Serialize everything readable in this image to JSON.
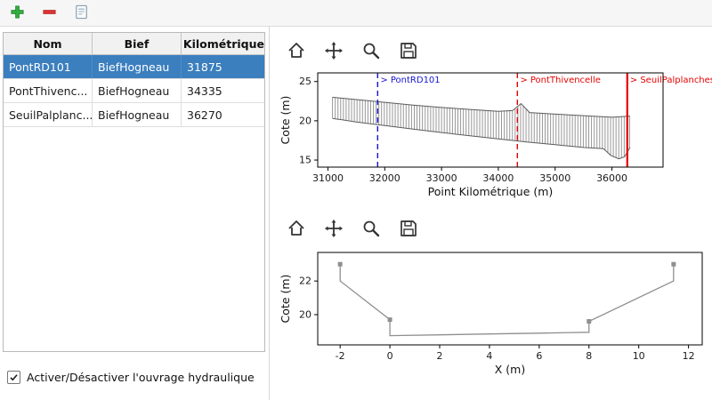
{
  "toolbar": {
    "buttons": [
      {
        "id": "add",
        "icon": "plus-icon"
      },
      {
        "id": "remove",
        "icon": "minus-icon"
      },
      {
        "id": "edit",
        "icon": "document-edit-icon"
      }
    ]
  },
  "table": {
    "columns": [
      "Nom",
      "Bief",
      "Point Kilométrique"
    ],
    "rows": [
      {
        "nom": "PontRD101",
        "bief": "BiefHogneau",
        "pk": "31875",
        "selected": true
      },
      {
        "nom": "PontThivenc...",
        "bief": "BiefHogneau",
        "pk": "34335",
        "selected": false
      },
      {
        "nom": "SeuilPalplanc...",
        "bief": "BiefHogneau",
        "pk": "36270",
        "selected": false
      }
    ]
  },
  "checkbox": {
    "label": "Activer/Désactiver l'ouvrage hydraulique",
    "checked": true
  },
  "plot_toolbar_icons": [
    "home-icon",
    "pan-icon",
    "zoom-icon",
    "save-icon"
  ],
  "colors": {
    "selection": "#3c7fbe",
    "selection_text": "#ffffff",
    "annotation_blue": "#1515cf",
    "annotation_red": "#e60000",
    "profile_gray": "#979797",
    "envelope_gray": "#5c5c5c"
  },
  "chart_data": [
    {
      "type": "line",
      "title": "",
      "xlabel": "Point Kilométrique (m)",
      "ylabel": "Cote (m)",
      "xlim": [
        30820,
        36900
      ],
      "ylim": [
        14.1,
        26.1
      ],
      "xticks": [
        31000,
        32000,
        33000,
        34000,
        35000,
        36000
      ],
      "yticks": [
        15,
        20,
        25
      ],
      "series": [
        {
          "name": "crete_berges",
          "points": [
            [
              31080,
              23.0
            ],
            [
              31500,
              22.7
            ],
            [
              32000,
              22.35
            ],
            [
              32500,
              22.0
            ],
            [
              33000,
              21.7
            ],
            [
              33500,
              21.45
            ],
            [
              34000,
              21.2
            ],
            [
              34250,
              21.3
            ],
            [
              34400,
              22.2
            ],
            [
              34550,
              21.05
            ],
            [
              35000,
              20.85
            ],
            [
              35500,
              20.65
            ],
            [
              36000,
              20.45
            ],
            [
              36320,
              20.6
            ]
          ]
        },
        {
          "name": "fond_lit",
          "points": [
            [
              31080,
              20.3
            ],
            [
              31500,
              19.85
            ],
            [
              32000,
              19.4
            ],
            [
              32500,
              18.95
            ],
            [
              33000,
              18.5
            ],
            [
              33500,
              18.1
            ],
            [
              34000,
              17.7
            ],
            [
              34500,
              17.3
            ],
            [
              35000,
              16.95
            ],
            [
              35500,
              16.6
            ],
            [
              35850,
              16.45
            ],
            [
              35980,
              15.6
            ],
            [
              36120,
              15.15
            ],
            [
              36220,
              15.4
            ],
            [
              36320,
              16.6
            ]
          ]
        }
      ],
      "section_lines": {
        "start": 31080,
        "end": 36320,
        "step": 48
      },
      "annotations": [
        {
          "x": 31875,
          "label": "> PontRD101",
          "color": "#1515cf",
          "style": "dashed"
        },
        {
          "x": 34335,
          "label": "> PontThivencelle",
          "color": "#e60000",
          "style": "dashed"
        },
        {
          "x": 36270,
          "label": "> SeuilPalplanches",
          "color": "#e60000",
          "style": "solid"
        }
      ]
    },
    {
      "type": "line",
      "title": "",
      "xlabel": "X (m)",
      "ylabel": "Cote (m)",
      "xlim": [
        -2.9,
        12.55
      ],
      "ylim": [
        18.2,
        23.7
      ],
      "xticks": [
        -2,
        0,
        2,
        4,
        6,
        8,
        10,
        12
      ],
      "yticks": [
        20,
        22
      ],
      "series": [
        {
          "name": "section_transversale",
          "points": [
            [
              -2,
              23
            ],
            [
              -2,
              22
            ],
            [
              0,
              19.7
            ],
            [
              0,
              18.75
            ],
            [
              2,
              18.8
            ],
            [
              4,
              18.85
            ],
            [
              6,
              18.9
            ],
            [
              8,
              18.95
            ],
            [
              8,
              19.6
            ],
            [
              11.4,
              22
            ],
            [
              11.4,
              23
            ]
          ]
        }
      ],
      "markers": [
        [
          -2,
          23
        ],
        [
          0,
          19.7
        ],
        [
          8,
          19.6
        ],
        [
          11.4,
          23
        ]
      ]
    }
  ]
}
